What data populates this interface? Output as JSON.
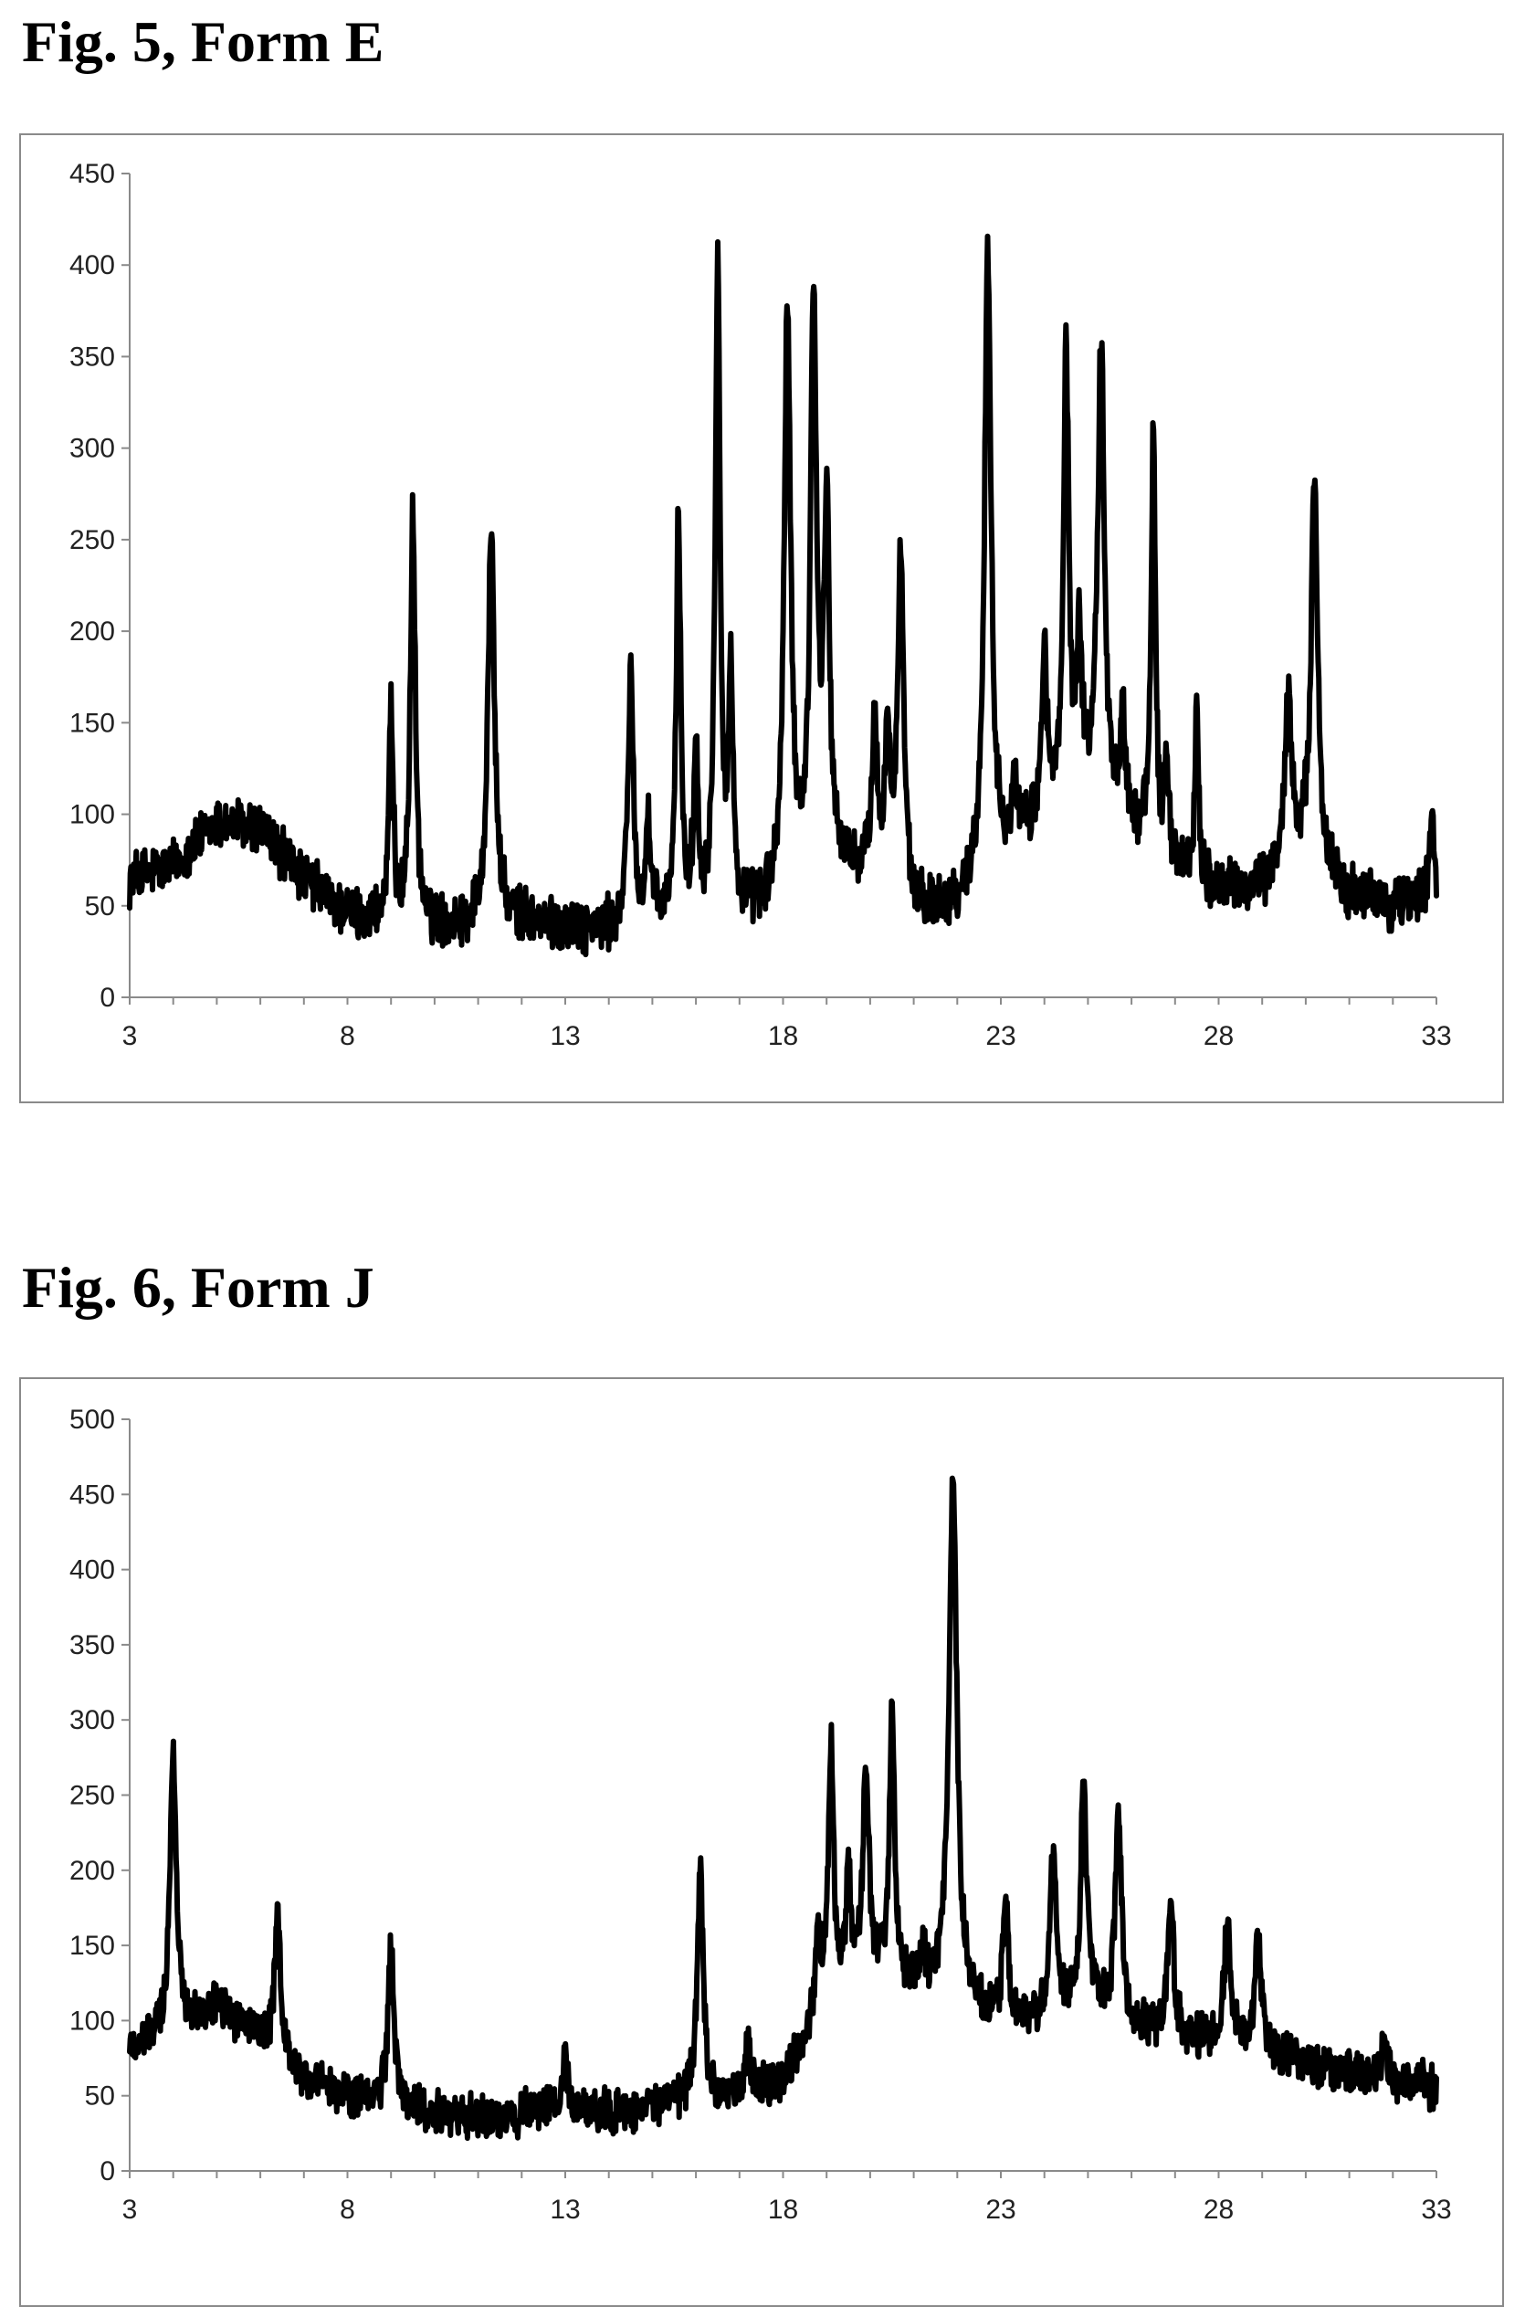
{
  "chart_data": [
    {
      "type": "line",
      "title": "Fig. 5, Form E",
      "xlabel": "",
      "ylabel": "",
      "xlim": [
        3,
        33
      ],
      "ylim": [
        0,
        450
      ],
      "xticks": [
        "3",
        "8",
        "13",
        "18",
        "23",
        "28",
        "33"
      ],
      "yticks": [
        "0",
        "50",
        "100",
        "150",
        "200",
        "250",
        "300",
        "350",
        "400",
        "450"
      ],
      "grid": false,
      "legend": "none",
      "line_color": "#000000",
      "baseline": [
        [
          3,
          65
        ],
        [
          4,
          72
        ],
        [
          5,
          95
        ],
        [
          6,
          92
        ],
        [
          7,
          65
        ],
        [
          8,
          45
        ],
        [
          9,
          40
        ],
        [
          10,
          38
        ],
        [
          11,
          40
        ],
        [
          12,
          42
        ],
        [
          13,
          38
        ],
        [
          14,
          36
        ],
        [
          15,
          40
        ],
        [
          16,
          42
        ],
        [
          17,
          42
        ],
        [
          18,
          50
        ],
        [
          19,
          70
        ],
        [
          20,
          65
        ],
        [
          21,
          45
        ],
        [
          22,
          50
        ],
        [
          23,
          75
        ],
        [
          24,
          95
        ],
        [
          25,
          110
        ],
        [
          26,
          90
        ],
        [
          27,
          70
        ],
        [
          28,
          58
        ],
        [
          29,
          60
        ],
        [
          30,
          85
        ],
        [
          31,
          55
        ],
        [
          32,
          50
        ],
        [
          33,
          60
        ]
      ],
      "peaks": [
        {
          "x": 9.0,
          "y": 150,
          "w": 0.06
        },
        {
          "x": 9.5,
          "y": 258,
          "w": 0.07
        },
        {
          "x": 11.3,
          "y": 255,
          "w": 0.09
        },
        {
          "x": 14.5,
          "y": 180,
          "w": 0.07
        },
        {
          "x": 14.9,
          "y": 95,
          "w": 0.06
        },
        {
          "x": 15.6,
          "y": 262,
          "w": 0.06
        },
        {
          "x": 16.0,
          "y": 130,
          "w": 0.06
        },
        {
          "x": 16.5,
          "y": 397,
          "w": 0.07
        },
        {
          "x": 16.8,
          "y": 170,
          "w": 0.06
        },
        {
          "x": 18.1,
          "y": 368,
          "w": 0.09
        },
        {
          "x": 18.7,
          "y": 380,
          "w": 0.08
        },
        {
          "x": 19.0,
          "y": 258,
          "w": 0.08
        },
        {
          "x": 20.1,
          "y": 148,
          "w": 0.07
        },
        {
          "x": 20.4,
          "y": 145,
          "w": 0.07
        },
        {
          "x": 20.7,
          "y": 242,
          "w": 0.08
        },
        {
          "x": 22.7,
          "y": 408,
          "w": 0.09
        },
        {
          "x": 23.3,
          "y": 112,
          "w": 0.07
        },
        {
          "x": 24.0,
          "y": 188,
          "w": 0.07
        },
        {
          "x": 24.5,
          "y": 350,
          "w": 0.07
        },
        {
          "x": 24.8,
          "y": 190,
          "w": 0.07
        },
        {
          "x": 25.3,
          "y": 355,
          "w": 0.09
        },
        {
          "x": 25.8,
          "y": 150,
          "w": 0.07
        },
        {
          "x": 26.5,
          "y": 303,
          "w": 0.06
        },
        {
          "x": 26.8,
          "y": 120,
          "w": 0.06
        },
        {
          "x": 27.5,
          "y": 160,
          "w": 0.05
        },
        {
          "x": 29.6,
          "y": 165,
          "w": 0.09
        },
        {
          "x": 30.2,
          "y": 290,
          "w": 0.08
        },
        {
          "x": 32.9,
          "y": 100,
          "w": 0.05
        }
      ]
    },
    {
      "type": "line",
      "title": "Fig. 6, Form J",
      "xlabel": "",
      "ylabel": "",
      "xlim": [
        3,
        33
      ],
      "ylim": [
        0,
        500
      ],
      "xticks": [
        "3",
        "8",
        "13",
        "18",
        "23",
        "28",
        "33"
      ],
      "yticks": [
        "0",
        "50",
        "100",
        "150",
        "200",
        "250",
        "300",
        "350",
        "400",
        "450",
        "500"
      ],
      "grid": false,
      "legend": "none",
      "line_color": "#000000",
      "baseline": [
        [
          3,
          80
        ],
        [
          4,
          95
        ],
        [
          5,
          110
        ],
        [
          6,
          90
        ],
        [
          7,
          60
        ],
        [
          8,
          50
        ],
        [
          9,
          45
        ],
        [
          10,
          38
        ],
        [
          11,
          35
        ],
        [
          12,
          38
        ],
        [
          13,
          42
        ],
        [
          14,
          38
        ],
        [
          15,
          42
        ],
        [
          16,
          50
        ],
        [
          17,
          50
        ],
        [
          18,
          60
        ],
        [
          19,
          110
        ],
        [
          20,
          130
        ],
        [
          21,
          120
        ],
        [
          22,
          110
        ],
        [
          23,
          95
        ],
        [
          24,
          100
        ],
        [
          25,
          110
        ],
        [
          26,
          95
        ],
        [
          27,
          90
        ],
        [
          28,
          85
        ],
        [
          29,
          80
        ],
        [
          30,
          70
        ],
        [
          31,
          65
        ],
        [
          32,
          62
        ],
        [
          33,
          55
        ]
      ],
      "peaks": [
        {
          "x": 4.0,
          "y": 275,
          "w": 0.09
        },
        {
          "x": 6.4,
          "y": 168,
          "w": 0.08
        },
        {
          "x": 9.0,
          "y": 150,
          "w": 0.08
        },
        {
          "x": 13.0,
          "y": 78,
          "w": 0.06
        },
        {
          "x": 16.1,
          "y": 200,
          "w": 0.08
        },
        {
          "x": 17.2,
          "y": 85,
          "w": 0.06
        },
        {
          "x": 18.8,
          "y": 150,
          "w": 0.07
        },
        {
          "x": 19.1,
          "y": 283,
          "w": 0.07
        },
        {
          "x": 19.5,
          "y": 190,
          "w": 0.07
        },
        {
          "x": 19.9,
          "y": 270,
          "w": 0.08
        },
        {
          "x": 20.5,
          "y": 300,
          "w": 0.07
        },
        {
          "x": 21.2,
          "y": 140,
          "w": 0.07
        },
        {
          "x": 21.9,
          "y": 460,
          "w": 0.11
        },
        {
          "x": 23.1,
          "y": 178,
          "w": 0.08
        },
        {
          "x": 24.2,
          "y": 212,
          "w": 0.08
        },
        {
          "x": 24.9,
          "y": 257,
          "w": 0.08
        },
        {
          "x": 25.7,
          "y": 235,
          "w": 0.09
        },
        {
          "x": 26.9,
          "y": 185,
          "w": 0.08
        },
        {
          "x": 28.2,
          "y": 170,
          "w": 0.08
        },
        {
          "x": 28.9,
          "y": 160,
          "w": 0.08
        },
        {
          "x": 31.8,
          "y": 88,
          "w": 0.06
        }
      ]
    }
  ]
}
